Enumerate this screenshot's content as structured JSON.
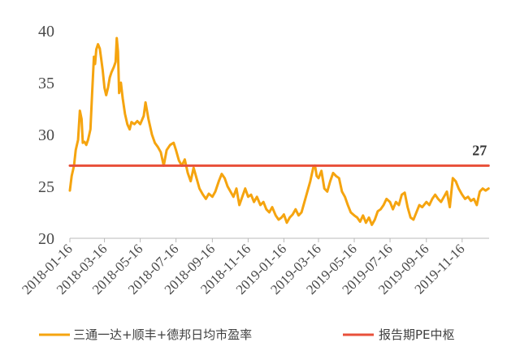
{
  "chart_data": {
    "type": "line",
    "title": "",
    "xlabel": "",
    "ylabel": "",
    "ylim": [
      20,
      40
    ],
    "yticks": [
      "20",
      "25",
      "30",
      "35",
      "40"
    ],
    "xlim": [
      "2018-01-16",
      "2020-01-01"
    ],
    "xtick_labels": [
      "2018-01-16",
      "2018-03-16",
      "2018-05-16",
      "2018-07-16",
      "2018-09-16",
      "2018-11-16",
      "2019-01-16",
      "2019-03-16",
      "2019-05-16",
      "2019-07-16",
      "2019-09-16",
      "2019-11-16"
    ],
    "grid": false,
    "legend_position": "bottom",
    "series": [
      {
        "name": "三通一达+顺丰+德邦日均市盈率",
        "color": "#F5A40F",
        "points": [
          [
            "2018-01-16",
            24.6
          ],
          [
            "2018-01-19",
            26.0
          ],
          [
            "2018-01-23",
            27.0
          ],
          [
            "2018-01-26",
            28.5
          ],
          [
            "2018-01-30",
            29.5
          ],
          [
            "2018-02-02",
            32.3
          ],
          [
            "2018-02-05",
            31.5
          ],
          [
            "2018-02-07",
            29.2
          ],
          [
            "2018-02-10",
            29.3
          ],
          [
            "2018-02-13",
            29.0
          ],
          [
            "2018-02-16",
            29.5
          ],
          [
            "2018-02-20",
            30.5
          ],
          [
            "2018-02-23",
            34.0
          ],
          [
            "2018-02-26",
            37.5
          ],
          [
            "2018-02-28",
            36.8
          ],
          [
            "2018-03-02",
            38.2
          ],
          [
            "2018-03-05",
            38.7
          ],
          [
            "2018-03-08",
            38.3
          ],
          [
            "2018-03-10",
            37.5
          ],
          [
            "2018-03-13",
            36.2
          ],
          [
            "2018-03-16",
            34.5
          ],
          [
            "2018-03-19",
            33.8
          ],
          [
            "2018-03-22",
            34.5
          ],
          [
            "2018-03-25",
            35.5
          ],
          [
            "2018-03-28",
            36.0
          ],
          [
            "2018-04-01",
            36.5
          ],
          [
            "2018-04-04",
            37.0
          ],
          [
            "2018-04-06",
            39.3
          ],
          [
            "2018-04-08",
            38.0
          ],
          [
            "2018-04-10",
            34.0
          ],
          [
            "2018-04-13",
            35.0
          ],
          [
            "2018-04-16",
            33.5
          ],
          [
            "2018-04-20",
            32.0
          ],
          [
            "2018-04-24",
            31.0
          ],
          [
            "2018-04-28",
            30.5
          ],
          [
            "2018-05-01",
            31.2
          ],
          [
            "2018-05-06",
            31.0
          ],
          [
            "2018-05-11",
            31.3
          ],
          [
            "2018-05-16",
            31.0
          ],
          [
            "2018-05-22",
            31.8
          ],
          [
            "2018-05-25",
            33.1
          ],
          [
            "2018-05-30",
            31.5
          ],
          [
            "2018-06-05",
            30.0
          ],
          [
            "2018-06-10",
            29.2
          ],
          [
            "2018-06-15",
            28.8
          ],
          [
            "2018-06-20",
            28.3
          ],
          [
            "2018-06-25",
            27.0
          ],
          [
            "2018-06-30",
            28.5
          ],
          [
            "2018-07-06",
            29.0
          ],
          [
            "2018-07-12",
            29.2
          ],
          [
            "2018-07-16",
            28.5
          ],
          [
            "2018-07-21",
            27.5
          ],
          [
            "2018-07-26",
            27.0
          ],
          [
            "2018-07-31",
            27.6
          ],
          [
            "2018-08-05",
            26.3
          ],
          [
            "2018-08-10",
            25.5
          ],
          [
            "2018-08-15",
            26.8
          ],
          [
            "2018-08-20",
            25.8
          ],
          [
            "2018-08-25",
            24.8
          ],
          [
            "2018-08-31",
            24.2
          ],
          [
            "2018-09-05",
            23.8
          ],
          [
            "2018-09-10",
            24.3
          ],
          [
            "2018-09-16",
            24.0
          ],
          [
            "2018-09-21",
            24.5
          ],
          [
            "2018-09-27",
            25.5
          ],
          [
            "2018-10-02",
            26.2
          ],
          [
            "2018-10-07",
            25.8
          ],
          [
            "2018-10-12",
            25.0
          ],
          [
            "2018-10-17",
            24.5
          ],
          [
            "2018-10-22",
            24.0
          ],
          [
            "2018-10-27",
            24.8
          ],
          [
            "2018-11-01",
            23.2
          ],
          [
            "2018-11-06",
            24.0
          ],
          [
            "2018-11-11",
            24.8
          ],
          [
            "2018-11-16",
            24.0
          ],
          [
            "2018-11-21",
            24.2
          ],
          [
            "2018-11-26",
            23.5
          ],
          [
            "2018-12-01",
            24.0
          ],
          [
            "2018-12-07",
            23.2
          ],
          [
            "2018-12-12",
            23.5
          ],
          [
            "2018-12-17",
            22.8
          ],
          [
            "2018-12-22",
            22.5
          ],
          [
            "2018-12-27",
            23.0
          ],
          [
            "2019-01-02",
            22.2
          ],
          [
            "2019-01-07",
            21.8
          ],
          [
            "2019-01-12",
            22.0
          ],
          [
            "2019-01-16",
            22.3
          ],
          [
            "2019-01-21",
            21.5
          ],
          [
            "2019-01-26",
            22.0
          ],
          [
            "2019-01-31",
            22.3
          ],
          [
            "2019-02-05",
            22.8
          ],
          [
            "2019-02-10",
            22.2
          ],
          [
            "2019-02-15",
            22.5
          ],
          [
            "2019-02-20",
            23.5
          ],
          [
            "2019-02-25",
            24.5
          ],
          [
            "2019-03-02",
            25.5
          ],
          [
            "2019-03-07",
            26.8
          ],
          [
            "2019-03-10",
            27.0
          ],
          [
            "2019-03-13",
            26.0
          ],
          [
            "2019-03-16",
            25.8
          ],
          [
            "2019-03-21",
            26.5
          ],
          [
            "2019-03-26",
            24.8
          ],
          [
            "2019-03-31",
            24.5
          ],
          [
            "2019-04-05",
            25.5
          ],
          [
            "2019-04-10",
            26.3
          ],
          [
            "2019-04-15",
            26.0
          ],
          [
            "2019-04-20",
            25.8
          ],
          [
            "2019-04-25",
            24.5
          ],
          [
            "2019-04-30",
            24.0
          ],
          [
            "2019-05-05",
            23.2
          ],
          [
            "2019-05-10",
            22.5
          ],
          [
            "2019-05-16",
            22.2
          ],
          [
            "2019-05-21",
            22.0
          ],
          [
            "2019-05-26",
            21.6
          ],
          [
            "2019-05-31",
            22.2
          ],
          [
            "2019-06-05",
            21.5
          ],
          [
            "2019-06-10",
            22.0
          ],
          [
            "2019-06-15",
            21.3
          ],
          [
            "2019-06-20",
            21.8
          ],
          [
            "2019-06-25",
            22.6
          ],
          [
            "2019-06-30",
            22.8
          ],
          [
            "2019-07-05",
            23.2
          ],
          [
            "2019-07-10",
            23.8
          ],
          [
            "2019-07-16",
            23.5
          ],
          [
            "2019-07-21",
            22.8
          ],
          [
            "2019-07-26",
            23.5
          ],
          [
            "2019-07-31",
            23.2
          ],
          [
            "2019-08-05",
            24.2
          ],
          [
            "2019-08-10",
            24.4
          ],
          [
            "2019-08-15",
            23.0
          ],
          [
            "2019-08-20",
            22.0
          ],
          [
            "2019-08-25",
            21.8
          ],
          [
            "2019-08-30",
            22.5
          ],
          [
            "2019-09-04",
            23.2
          ],
          [
            "2019-09-09",
            23.0
          ],
          [
            "2019-09-16",
            23.5
          ],
          [
            "2019-09-21",
            23.2
          ],
          [
            "2019-09-26",
            23.8
          ],
          [
            "2019-10-01",
            24.2
          ],
          [
            "2019-10-06",
            23.8
          ],
          [
            "2019-10-11",
            23.5
          ],
          [
            "2019-10-16",
            24.0
          ],
          [
            "2019-10-21",
            24.5
          ],
          [
            "2019-10-26",
            23.0
          ],
          [
            "2019-10-31",
            25.8
          ],
          [
            "2019-11-05",
            25.5
          ],
          [
            "2019-11-10",
            24.8
          ],
          [
            "2019-11-16",
            24.2
          ],
          [
            "2019-11-21",
            23.8
          ],
          [
            "2019-11-26",
            24.0
          ],
          [
            "2019-12-01",
            23.6
          ],
          [
            "2019-12-06",
            23.8
          ],
          [
            "2019-12-11",
            23.2
          ],
          [
            "2019-12-16",
            24.5
          ],
          [
            "2019-12-21",
            24.8
          ],
          [
            "2019-12-26",
            24.6
          ],
          [
            "2019-12-31",
            24.8
          ]
        ]
      },
      {
        "name": "报告期PE中枢",
        "color": "#E8503A",
        "points": [
          [
            "2018-01-16",
            27
          ],
          [
            "2019-12-31",
            27
          ]
        ],
        "label": "27"
      }
    ]
  }
}
